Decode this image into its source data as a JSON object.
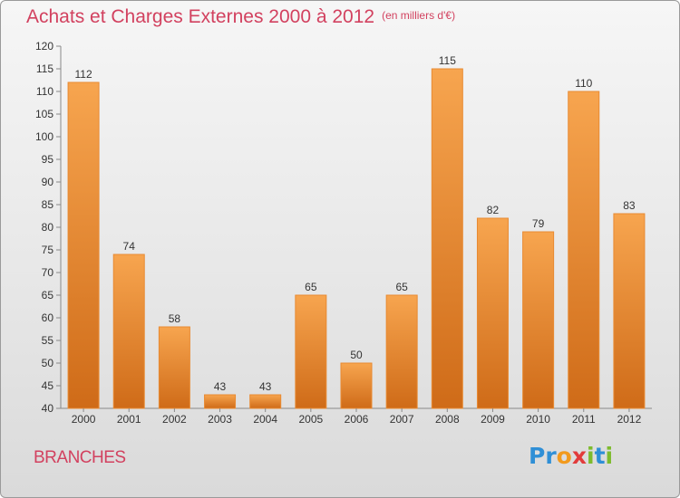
{
  "header": {
    "title": "Achats et Charges Externes 2000 à 2012",
    "unit": "(en milliers d'€)"
  },
  "footer": {
    "region": "BRANCHES",
    "logo_letters": [
      "P",
      "r",
      "o",
      "x",
      "i",
      "t",
      "i"
    ],
    "logo_colors": [
      "#2f8fd6",
      "#2f8fd6",
      "#f29a1d",
      "#e23b3b",
      "#7dbb2d",
      "#2f8fd6",
      "#7dbb2d"
    ]
  },
  "colors": {
    "bar_top": "#f7a54f",
    "bar_bottom": "#cf6b18",
    "bar_edge": "#e88a32",
    "axis": "#888888",
    "grid": "#d2d2d2",
    "text": "#333333",
    "accent": "#d2415f"
  },
  "chart_data": {
    "type": "bar",
    "title": "Achats et Charges Externes 2000 à 2012",
    "subtitle": "(en milliers d'€)",
    "xlabel": "",
    "ylabel": "",
    "categories": [
      "2000",
      "2001",
      "2002",
      "2003",
      "2004",
      "2005",
      "2006",
      "2007",
      "2008",
      "2009",
      "2010",
      "2011",
      "2012"
    ],
    "values": [
      112,
      74,
      58,
      43,
      43,
      65,
      50,
      65,
      115,
      82,
      79,
      110,
      83
    ],
    "ylim": [
      40,
      120
    ],
    "yticks": [
      40,
      45,
      50,
      55,
      60,
      65,
      70,
      75,
      80,
      85,
      90,
      95,
      100,
      105,
      110,
      115,
      120
    ],
    "grid": false,
    "legend": "none"
  }
}
